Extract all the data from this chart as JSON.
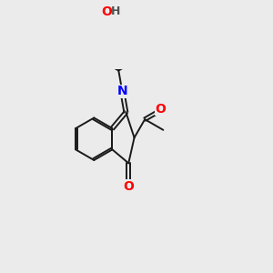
{
  "background_color": "#ebebeb",
  "bond_color": "#1a1a1a",
  "atom_colors": {
    "O": "#ff0000",
    "N": "#0000ff",
    "H": "#505050",
    "C": "#1a1a1a"
  },
  "bond_width": 1.4,
  "font_size_atom": 10,
  "font_size_h": 9,
  "xlim": [
    0,
    10
  ],
  "ylim": [
    0,
    10
  ]
}
